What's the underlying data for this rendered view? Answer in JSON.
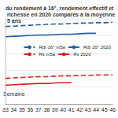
{
  "chart_data": {
    "type": "line",
    "title": "du rendement à 16°, rendement effectif et richesse en 2020 comparés à la moyenne 5 ans",
    "x_label": "Semaine",
    "categories": [
      "33",
      "34",
      "35",
      "36",
      "37",
      "38",
      "39",
      "40",
      "41",
      "42",
      "43",
      "44",
      "45",
      "46"
    ],
    "series": [
      {
        "name": "Rdt 16° m5a",
        "color": "#1f5fa8",
        "line_style": "dashed",
        "values": [
          91,
          91.5,
          92,
          92.5,
          93,
          93.5,
          94,
          94,
          94.5,
          95,
          95,
          95.5,
          95.5,
          96
        ]
      },
      {
        "name": "Rdt 16° 2020",
        "color": "#1f5fa8",
        "line_style": "solid",
        "values": [
          79,
          79.5,
          80,
          80.5,
          81,
          81,
          81.5,
          82,
          82,
          82.5,
          83,
          83,
          null,
          null
        ]
      },
      {
        "name": "Rs m5a",
        "color": "#d62020",
        "line_style": "dashed",
        "values": [
          30,
          30.5,
          31,
          31.5,
          32,
          32,
          32.5,
          33,
          33,
          33.5,
          33.5,
          34,
          34,
          34
        ]
      },
      {
        "name": "Rs 2020",
        "color": "#d62020",
        "line_style": "solid",
        "values": [
          22,
          22.5,
          23,
          23.5,
          24,
          24,
          24.5,
          25,
          25,
          null,
          null,
          null,
          null,
          null
        ]
      }
    ],
    "ylim": [
      0,
      100
    ],
    "yticks": [
      0,
      20,
      40,
      60,
      80,
      100
    ],
    "grid": true,
    "legend": "right",
    "tick_labels": "x"
  }
}
